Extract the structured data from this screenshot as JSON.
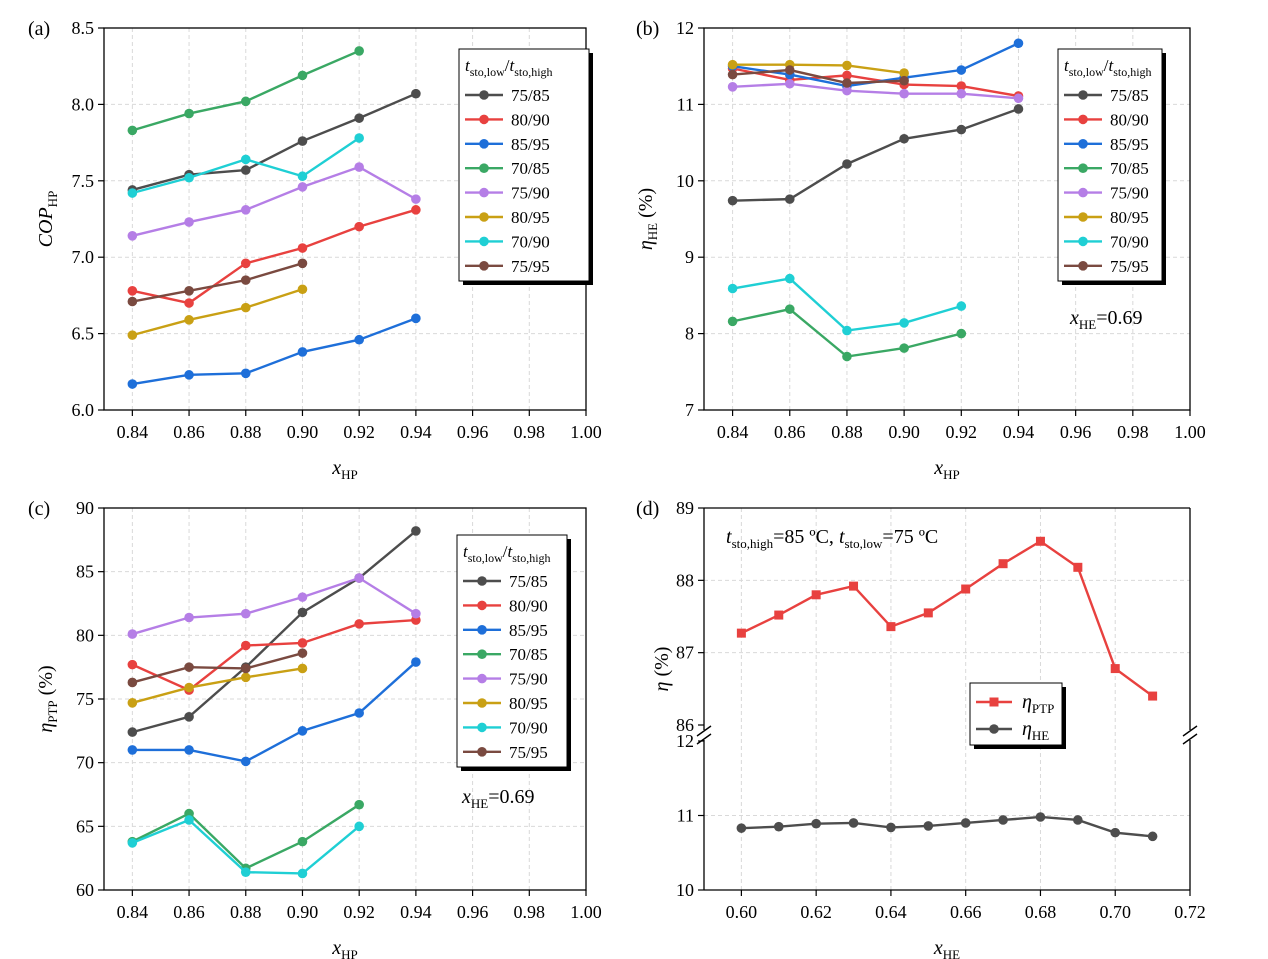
{
  "colors": {
    "75/85": "#4d4d4d",
    "80/90": "#e8413f",
    "85/95": "#1e6fd9",
    "70/85": "#3aa864",
    "75/90": "#b57ee6",
    "80/95": "#c9a014",
    "70/90": "#1fcfd4",
    "75/95": "#7a4a40",
    "PTP": "#e8413f",
    "HE": "#4d4d4d"
  },
  "chart_data": [
    {
      "id": "a",
      "panel_label": "(a)",
      "type": "line",
      "xlabel_main": "x",
      "xlabel_sub": "HP",
      "ylabel_main": "COP",
      "ylabel_sub": "HP",
      "ylabel_unit": "",
      "xlim": [
        0.83,
        1.0
      ],
      "ylim": [
        6.0,
        8.5
      ],
      "xticks": [
        0.84,
        0.86,
        0.88,
        0.9,
        0.92,
        0.94,
        0.96,
        0.98,
        1.0
      ],
      "xtick_labels": [
        "0.84",
        "0.86",
        "0.88",
        "0.90",
        "0.92",
        "0.94",
        "0.96",
        "0.98",
        "1.00"
      ],
      "yticks": [
        6.0,
        6.5,
        7.0,
        7.5,
        8.0,
        8.5
      ],
      "ytick_labels": [
        "6.0",
        "6.5",
        "7.0",
        "7.5",
        "8.0",
        "8.5"
      ],
      "marker": "circle",
      "legend_title": {
        "t1": "t",
        "s1": "sto,low",
        "sep": "/",
        "t2": "t",
        "s2": "sto,high"
      },
      "legend_position": "top-right",
      "series": [
        {
          "name": "75/85",
          "x": [
            0.84,
            0.86,
            0.88,
            0.9,
            0.92,
            0.94
          ],
          "y": [
            7.44,
            7.54,
            7.57,
            7.76,
            7.91,
            8.07
          ]
        },
        {
          "name": "80/90",
          "x": [
            0.84,
            0.86,
            0.88,
            0.9,
            0.92,
            0.94
          ],
          "y": [
            6.78,
            6.7,
            6.96,
            7.06,
            7.2,
            7.31
          ]
        },
        {
          "name": "85/95",
          "x": [
            0.84,
            0.86,
            0.88,
            0.9,
            0.92,
            0.94
          ],
          "y": [
            6.17,
            6.23,
            6.24,
            6.38,
            6.46,
            6.6
          ]
        },
        {
          "name": "70/85",
          "x": [
            0.84,
            0.86,
            0.88,
            0.9,
            0.92
          ],
          "y": [
            7.83,
            7.94,
            8.02,
            8.19,
            8.35
          ]
        },
        {
          "name": "75/90",
          "x": [
            0.84,
            0.86,
            0.88,
            0.9,
            0.92,
            0.94
          ],
          "y": [
            7.14,
            7.23,
            7.31,
            7.46,
            7.59,
            7.38
          ]
        },
        {
          "name": "80/95",
          "x": [
            0.84,
            0.86,
            0.88,
            0.9
          ],
          "y": [
            6.49,
            6.59,
            6.67,
            6.79
          ]
        },
        {
          "name": "70/90",
          "x": [
            0.84,
            0.86,
            0.88,
            0.9,
            0.92
          ],
          "y": [
            7.42,
            7.52,
            7.64,
            7.53,
            7.78
          ]
        },
        {
          "name": "75/95",
          "x": [
            0.84,
            0.86,
            0.88,
            0.9
          ],
          "y": [
            6.71,
            6.78,
            6.85,
            6.96
          ]
        }
      ],
      "annotation": null
    },
    {
      "id": "b",
      "panel_label": "(b)",
      "type": "line",
      "xlabel_main": "x",
      "xlabel_sub": "HP",
      "ylabel_main": "η",
      "ylabel_sub": "HE",
      "ylabel_unit": " (%)",
      "xlim": [
        0.83,
        1.0
      ],
      "ylim": [
        7,
        12
      ],
      "xticks": [
        0.84,
        0.86,
        0.88,
        0.9,
        0.92,
        0.94,
        0.96,
        0.98,
        1.0
      ],
      "xtick_labels": [
        "0.84",
        "0.86",
        "0.88",
        "0.90",
        "0.92",
        "0.94",
        "0.96",
        "0.98",
        "1.00"
      ],
      "yticks": [
        7,
        8,
        9,
        10,
        11,
        12
      ],
      "ytick_labels": [
        "7",
        "8",
        "9",
        "10",
        "11",
        "12"
      ],
      "marker": "circle",
      "legend_title": {
        "t1": "t",
        "s1": "sto,low",
        "sep": "/",
        "t2": "t",
        "s2": "sto,high"
      },
      "legend_position": "top-right",
      "series": [
        {
          "name": "75/85",
          "x": [
            0.84,
            0.86,
            0.88,
            0.9,
            0.92,
            0.94
          ],
          "y": [
            9.74,
            9.76,
            10.22,
            10.55,
            10.67,
            10.94
          ]
        },
        {
          "name": "80/90",
          "x": [
            0.84,
            0.86,
            0.88,
            0.9,
            0.92,
            0.94
          ],
          "y": [
            11.47,
            11.32,
            11.38,
            11.26,
            11.24,
            11.11
          ]
        },
        {
          "name": "85/95",
          "x": [
            0.84,
            0.86,
            0.88,
            0.9,
            0.92,
            0.94
          ],
          "y": [
            11.5,
            11.39,
            11.24,
            11.35,
            11.45,
            11.8
          ]
        },
        {
          "name": "70/85",
          "x": [
            0.84,
            0.86,
            0.88,
            0.9,
            0.92
          ],
          "y": [
            8.16,
            8.32,
            7.7,
            7.81,
            8.0
          ]
        },
        {
          "name": "75/90",
          "x": [
            0.84,
            0.86,
            0.88,
            0.9,
            0.92,
            0.94
          ],
          "y": [
            11.23,
            11.27,
            11.18,
            11.14,
            11.14,
            11.08
          ]
        },
        {
          "name": "80/95",
          "x": [
            0.84,
            0.86,
            0.88,
            0.9
          ],
          "y": [
            11.52,
            11.52,
            11.51,
            11.41
          ]
        },
        {
          "name": "70/90",
          "x": [
            0.84,
            0.86,
            0.88,
            0.9,
            0.92
          ],
          "y": [
            8.59,
            8.72,
            8.04,
            8.14,
            8.36
          ]
        },
        {
          "name": "75/95",
          "x": [
            0.84,
            0.86,
            0.88,
            0.9
          ],
          "y": [
            11.39,
            11.45,
            11.28,
            11.31
          ]
        }
      ],
      "annotation": {
        "main": "x",
        "sub": "HE",
        "rest": "=0.69"
      }
    },
    {
      "id": "c",
      "panel_label": "(c)",
      "type": "line",
      "xlabel_main": "x",
      "xlabel_sub": "HP",
      "ylabel_main": "η",
      "ylabel_sub": "PTP",
      "ylabel_unit": " (%)",
      "xlim": [
        0.83,
        1.0
      ],
      "ylim": [
        60,
        90
      ],
      "xticks": [
        0.84,
        0.86,
        0.88,
        0.9,
        0.92,
        0.94,
        0.96,
        0.98,
        1.0
      ],
      "xtick_labels": [
        "0.84",
        "0.86",
        "0.88",
        "0.90",
        "0.92",
        "0.94",
        "0.96",
        "0.98",
        "1.00"
      ],
      "yticks": [
        60,
        65,
        70,
        75,
        80,
        85,
        90
      ],
      "ytick_labels": [
        "60",
        "65",
        "70",
        "75",
        "80",
        "85",
        "90"
      ],
      "marker": "circle",
      "legend_title": {
        "t1": "t",
        "s1": "sto,low",
        "sep": "/",
        "t2": "t",
        "s2": "sto,high"
      },
      "legend_position": "top-right",
      "series": [
        {
          "name": "75/85",
          "x": [
            0.84,
            0.86,
            0.88,
            0.9,
            0.92,
            0.94
          ],
          "y": [
            72.4,
            73.6,
            77.5,
            81.8,
            84.5,
            88.2
          ]
        },
        {
          "name": "80/90",
          "x": [
            0.84,
            0.86,
            0.88,
            0.9,
            0.92,
            0.94
          ],
          "y": [
            77.7,
            75.7,
            79.2,
            79.4,
            80.9,
            81.2
          ]
        },
        {
          "name": "85/95",
          "x": [
            0.84,
            0.86,
            0.88,
            0.9,
            0.92,
            0.94
          ],
          "y": [
            71.0,
            71.0,
            70.1,
            72.5,
            73.9,
            77.9
          ]
        },
        {
          "name": "70/85",
          "x": [
            0.84,
            0.86,
            0.88,
            0.9,
            0.92
          ],
          "y": [
            63.8,
            66.0,
            61.7,
            63.8,
            66.7
          ]
        },
        {
          "name": "75/90",
          "x": [
            0.84,
            0.86,
            0.88,
            0.9,
            0.92,
            0.94
          ],
          "y": [
            80.1,
            81.4,
            81.7,
            83.0,
            84.5,
            81.7
          ]
        },
        {
          "name": "80/95",
          "x": [
            0.84,
            0.86,
            0.88,
            0.9
          ],
          "y": [
            74.7,
            75.9,
            76.7,
            77.4
          ]
        },
        {
          "name": "70/90",
          "x": [
            0.84,
            0.86,
            0.88,
            0.9,
            0.92
          ],
          "y": [
            63.7,
            65.5,
            61.4,
            61.3,
            65.0
          ]
        },
        {
          "name": "75/95",
          "x": [
            0.84,
            0.86,
            0.88,
            0.9
          ],
          "y": [
            76.3,
            77.5,
            77.4,
            78.6
          ]
        }
      ],
      "annotation": {
        "main": "x",
        "sub": "HE",
        "rest": "=0.69"
      }
    },
    {
      "id": "d",
      "panel_label": "(d)",
      "type": "line",
      "broken_y_axis": true,
      "xlabel_main": "x",
      "xlabel_sub": "HE",
      "ylabel_main": "η",
      "ylabel_sub": "",
      "ylabel_unit": " (%)",
      "xlim": [
        0.59,
        0.72
      ],
      "ylim_upper": [
        86,
        89
      ],
      "ylim_lower": [
        10,
        12
      ],
      "xticks": [
        0.6,
        0.62,
        0.64,
        0.66,
        0.68,
        0.7,
        0.72
      ],
      "xtick_labels": [
        "0.60",
        "0.62",
        "0.64",
        "0.66",
        "0.68",
        "0.70",
        "0.72"
      ],
      "yticks_upper": [
        86,
        87,
        88,
        89
      ],
      "ytick_labels_upper": [
        "86",
        "87",
        "88",
        "89"
      ],
      "yticks_lower": [
        10,
        11,
        12
      ],
      "ytick_labels_lower": [
        "10",
        "11",
        "12"
      ],
      "condition_text": {
        "t1": "t",
        "s1": "sto,high",
        "v1": "=85 ºC,  ",
        "t2": "t",
        "s2": "sto,low",
        "v2": "=75 ºC"
      },
      "legend_position": "center-right",
      "series": [
        {
          "name": "η_PTP",
          "label_main": "η",
          "label_sub": "PTP",
          "marker": "square",
          "axis": "upper",
          "x": [
            0.6,
            0.61,
            0.62,
            0.63,
            0.64,
            0.65,
            0.66,
            0.67,
            0.68,
            0.69,
            0.7,
            0.71
          ],
          "y": [
            87.27,
            87.52,
            87.8,
            87.92,
            87.36,
            87.55,
            87.88,
            88.23,
            88.54,
            88.18,
            86.78,
            86.4
          ]
        },
        {
          "name": "η_HE",
          "label_main": "η",
          "label_sub": "HE",
          "marker": "circle",
          "axis": "lower",
          "x": [
            0.6,
            0.61,
            0.62,
            0.63,
            0.64,
            0.65,
            0.66,
            0.67,
            0.68,
            0.69,
            0.7,
            0.71
          ],
          "y": [
            10.83,
            10.85,
            10.89,
            10.9,
            10.84,
            10.86,
            10.9,
            10.94,
            10.98,
            10.94,
            10.77,
            10.72
          ]
        }
      ]
    }
  ]
}
